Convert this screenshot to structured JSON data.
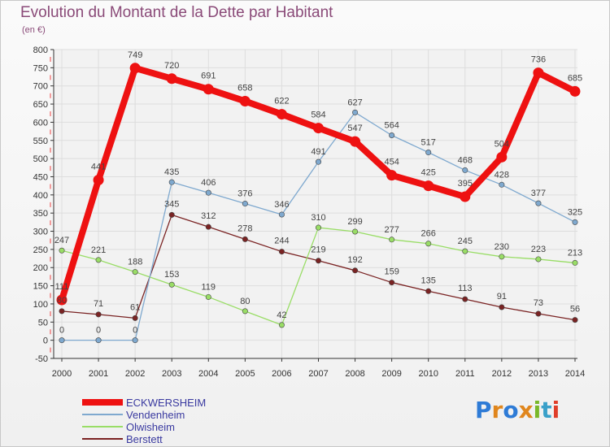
{
  "title": "Evolution du Montant de la Dette par Habitant",
  "subtitle": "(en €)",
  "logo": {
    "text": "Proxiti",
    "colors": [
      "#2e7bd6",
      "#e0861d",
      "#2e7bd6",
      "#e0861d",
      "#79b829",
      "#3aa0c9",
      "#e03e2a"
    ]
  },
  "chart_data": {
    "type": "line",
    "x": [
      2000,
      2001,
      2002,
      2003,
      2004,
      2005,
      2006,
      2007,
      2008,
      2009,
      2010,
      2011,
      2012,
      2013,
      2014
    ],
    "ylim": [
      -50,
      800
    ],
    "yticks": [
      -50,
      0,
      50,
      100,
      150,
      200,
      250,
      300,
      350,
      400,
      450,
      500,
      550,
      600,
      650,
      700,
      750,
      800
    ],
    "grid": true,
    "legend_position": "bottom-left",
    "series": [
      {
        "name": "ECKWERSHEIM",
        "color": "#ee1111",
        "values": [
          111,
          441,
          749,
          720,
          691,
          658,
          622,
          584,
          547,
          454,
          425,
          395,
          504,
          736,
          685
        ]
      },
      {
        "name": "Vendenheim",
        "color": "#7fa9cf",
        "values": [
          0,
          0,
          0,
          435,
          406,
          376,
          346,
          491,
          627,
          564,
          517,
          468,
          428,
          377,
          325
        ]
      },
      {
        "name": "Olwisheim",
        "color": "#99dd66",
        "values": [
          247,
          221,
          188,
          153,
          119,
          80,
          42,
          310,
          299,
          277,
          266,
          245,
          230,
          223,
          213
        ]
      },
      {
        "name": "Berstett",
        "color": "#7a2323",
        "values": [
          80,
          71,
          61,
          345,
          312,
          278,
          244,
          219,
          192,
          159,
          135,
          113,
          91,
          73,
          56
        ]
      }
    ],
    "data_labels": [
      [
        "111",
        "441",
        "749",
        "720",
        "691",
        "658",
        "622",
        "584",
        "547",
        "454",
        "425",
        "395",
        "504",
        "736",
        "685"
      ],
      [
        "0",
        "0",
        "0",
        "435",
        "406",
        "376",
        "346",
        "491",
        "627",
        "564",
        "517",
        "468",
        "428",
        "377",
        "325"
      ],
      [
        "247",
        "221",
        "188",
        "153",
        "119",
        "80",
        "42",
        "310",
        "299",
        "277",
        "266",
        "245",
        "230",
        "223",
        "213"
      ],
      [
        "80",
        "71",
        "61",
        "345",
        "312",
        "278",
        "244",
        "219",
        "192",
        "159",
        "135",
        "113",
        "91",
        "73",
        "56"
      ]
    ]
  }
}
